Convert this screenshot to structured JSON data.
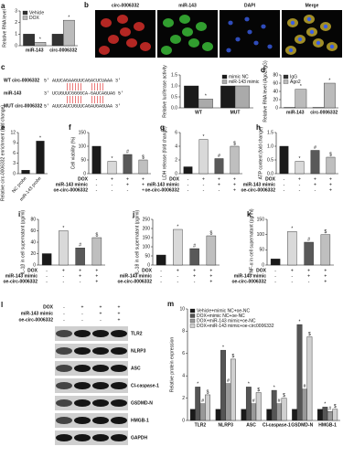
{
  "chart_data": [
    {
      "type": "bar",
      "panel": "a",
      "ylabel": "Relative RNA level",
      "categories": [
        "miR-143",
        "circ-0006332"
      ],
      "series": [
        {
          "name": "Vehicle",
          "color": "#333333",
          "values": [
            1,
            1
          ],
          "markers": [
            null,
            null
          ]
        },
        {
          "name": "DOX",
          "color": "#bbbbbb",
          "values": [
            0.3,
            2.2
          ],
          "markers": [
            "*",
            "*"
          ]
        }
      ],
      "ylim": [
        0,
        3
      ],
      "yticks": [
        0,
        1,
        2,
        3
      ],
      "legend": "top-left"
    },
    {
      "type": "bar",
      "ylabel": "Relative luciferase activity",
      "categories": [
        "WT",
        "MUT"
      ],
      "series": [
        {
          "name": "mimic NC",
          "color": "#1a1a1a",
          "values": [
            1,
            1
          ],
          "markers": [
            null,
            null
          ]
        },
        {
          "name": "miR-143 mimic",
          "color": "#aaaaaa",
          "values": [
            0.4,
            1
          ],
          "markers": [
            "*",
            null
          ]
        }
      ],
      "ylim": [
        0,
        1.5
      ],
      "yticks": [
        {
          "value": 0,
          "label": "0.0"
        },
        {
          "value": 0.5,
          "label": "0.5"
        },
        {
          "value": 1,
          "label": "1.0"
        },
        {
          "value": 1.5,
          "label": "1.5"
        }
      ],
      "legend": "top-right"
    },
    {
      "type": "bar",
      "panel": "d",
      "ylabel": "Relative RNA level (Ago2/IgG)",
      "categories": [
        "miR-143",
        "circ-0006332"
      ],
      "series": [
        {
          "name": "IgG",
          "color": "#333333",
          "values": [
            1,
            1
          ],
          "markers": [
            null,
            null
          ]
        },
        {
          "name": "Ago2",
          "color": "#bbbbbb",
          "values": [
            45,
            60
          ],
          "markers": [
            "*",
            "*"
          ]
        }
      ],
      "ylim": [
        0,
        80
      ],
      "yticks": [
        0,
        20,
        40,
        60,
        80
      ],
      "legend": "top-left"
    },
    {
      "type": "bar",
      "panel": "e",
      "ylabel": "Relative circ-0006332 enrichment (fold change)",
      "categories": [
        "NC probe",
        "miR-143 probe"
      ],
      "values": [
        1,
        9.5
      ],
      "colors": [
        "#1a1a1a",
        "#1a1a1a"
      ],
      "markers": [
        null,
        "*"
      ],
      "ylim": [
        0,
        12
      ],
      "yticks": [
        0,
        3,
        6,
        9,
        12
      ]
    },
    {
      "type": "bar",
      "panel": "f",
      "ylabel": "Cell viability (%)",
      "values": [
        100,
        45,
        70,
        50
      ],
      "colors": [
        "#1a1a1a",
        "#d9d9d9",
        "#595959",
        "#bfbfbf"
      ],
      "markers": [
        null,
        "*",
        "#",
        "$"
      ],
      "ylim": [
        0,
        150
      ],
      "yticks": [
        0,
        50,
        100,
        150
      ],
      "conditions": [
        {
          "label": "DOX",
          "signs": [
            "-",
            "+",
            "+",
            "+"
          ]
        },
        {
          "label": "miR-143 mimic",
          "signs": [
            "-",
            "-",
            "+",
            "+"
          ]
        },
        {
          "label": "oe-circ-0006332",
          "signs": [
            "-",
            "-",
            "-",
            "+"
          ]
        }
      ]
    },
    {
      "type": "bar",
      "panel": "g",
      "ylabel": "LDH release (fold change)",
      "values": [
        1,
        5,
        2.2,
        4
      ],
      "colors": [
        "#1a1a1a",
        "#d9d9d9",
        "#595959",
        "#bfbfbf"
      ],
      "markers": [
        null,
        "*",
        "#",
        "$"
      ],
      "ylim": [
        0,
        6
      ],
      "yticks": [
        0,
        2,
        4,
        6
      ],
      "conditions": [
        {
          "label": "DOX",
          "signs": [
            "-",
            "+",
            "+",
            "+"
          ]
        },
        {
          "label": "miR-143 mimic",
          "signs": [
            "-",
            "-",
            "+",
            "+"
          ]
        },
        {
          "label": "oe-circ-0006332",
          "signs": [
            "-",
            "-",
            "-",
            "+"
          ]
        }
      ]
    },
    {
      "type": "bar",
      "panel": "h",
      "ylabel": "ATP content (fold change)",
      "values": [
        1,
        0.45,
        0.85,
        0.6
      ],
      "colors": [
        "#1a1a1a",
        "#d9d9d9",
        "#595959",
        "#bfbfbf"
      ],
      "markers": [
        null,
        "*",
        "#",
        "$"
      ],
      "ylim": [
        0,
        1.5
      ],
      "yticks": [
        {
          "value": 0,
          "label": "0.0"
        },
        {
          "value": 0.5,
          "label": "0.5"
        },
        {
          "value": 1,
          "label": "1.0"
        },
        {
          "value": 1.5,
          "label": "1.5"
        }
      ],
      "conditions": [
        {
          "label": "DOX",
          "signs": [
            "-",
            "+",
            "+",
            "+"
          ]
        },
        {
          "label": "miR-143 mimic",
          "signs": [
            "-",
            "-",
            "+",
            "+"
          ]
        },
        {
          "label": "oe-circ-0006332",
          "signs": [
            "-",
            "-",
            "-",
            "+"
          ]
        }
      ]
    },
    {
      "type": "bar",
      "panel": "i",
      "ylabel": "IL-1β in cell supernatant (pg/ml)",
      "values": [
        20,
        60,
        30,
        48
      ],
      "colors": [
        "#1a1a1a",
        "#d9d9d9",
        "#595959",
        "#bfbfbf"
      ],
      "markers": [
        null,
        "*",
        "#",
        "$"
      ],
      "ylim": [
        0,
        80
      ],
      "yticks": [
        0,
        20,
        40,
        60,
        80
      ],
      "conditions": [
        {
          "label": "DOX",
          "signs": [
            "-",
            "+",
            "+",
            "+"
          ]
        },
        {
          "label": "miR-143 mimic",
          "signs": [
            "-",
            "-",
            "+",
            "+"
          ]
        },
        {
          "label": "oe-circ-0006332",
          "signs": [
            "-",
            "-",
            "-",
            "+"
          ]
        }
      ]
    },
    {
      "type": "bar",
      "panel": "j",
      "ylabel": "IL-18 in cell supernatant (pg/ml)",
      "values": [
        55,
        195,
        90,
        160
      ],
      "colors": [
        "#1a1a1a",
        "#d9d9d9",
        "#595959",
        "#bfbfbf"
      ],
      "markers": [
        null,
        "*",
        "#",
        "$"
      ],
      "ylim": [
        0,
        250
      ],
      "yticks": [
        0,
        50,
        100,
        150,
        200,
        250
      ],
      "conditions": [
        {
          "label": "DOX",
          "signs": [
            "-",
            "+",
            "+",
            "+"
          ]
        },
        {
          "label": "miR-143 mimic",
          "signs": [
            "-",
            "-",
            "+",
            "+"
          ]
        },
        {
          "label": "oe-circ-0006332",
          "signs": [
            "-",
            "-",
            "-",
            "+"
          ]
        }
      ]
    },
    {
      "type": "bar",
      "panel": "k",
      "ylabel": "TNF-α in cell supernatant (pg/ml)",
      "values": [
        20,
        110,
        75,
        100
      ],
      "colors": [
        "#1a1a1a",
        "#d9d9d9",
        "#595959",
        "#bfbfbf"
      ],
      "markers": [
        null,
        "*",
        "#",
        "$"
      ],
      "ylim": [
        0,
        150
      ],
      "yticks": [
        0,
        50,
        100,
        150
      ],
      "conditions": [
        {
          "label": "DOX",
          "signs": [
            "-",
            "+",
            "+",
            "+"
          ]
        },
        {
          "label": "miR-143 mimic",
          "signs": [
            "-",
            "-",
            "+",
            "+"
          ]
        },
        {
          "label": "oe-circ-0006332",
          "signs": [
            "-",
            "-",
            "-",
            "+"
          ]
        }
      ]
    },
    {
      "type": "bar",
      "panel": "m",
      "ylabel": "Relative protein expression",
      "categories": [
        "TLR2",
        "NLRP3",
        "ASC",
        "Cl-caspase-1",
        "GSDMD-N",
        "HMGB-1"
      ],
      "series": [
        {
          "name": "Vehicle+mimic NC+oe-NC",
          "color": "#1a1a1a",
          "values": [
            1,
            1,
            1,
            1,
            1,
            1
          ],
          "markers": [
            null,
            null,
            null,
            null,
            null,
            null
          ]
        },
        {
          "name": "DOX+mimic NC+oe-NC",
          "color": "#555555",
          "values": [
            3,
            6.3,
            3,
            2.7,
            8.6,
            1.2
          ],
          "markers": [
            "*",
            "*",
            "*",
            "*",
            "*",
            "*"
          ]
        },
        {
          "name": "DOX+miR-143 mimic+oe-NC",
          "color": "#999999",
          "values": [
            1.5,
            3.3,
            1.5,
            1.5,
            2.8,
            0.8
          ],
          "markers": [
            "#",
            "#",
            "#",
            "#",
            "#",
            "#"
          ]
        },
        {
          "name": "DOX+miR-143 mimic+oe-circ0006332",
          "color": "#d0d0d0",
          "values": [
            2.3,
            5.5,
            2.5,
            2,
            7.5,
            1
          ],
          "markers": [
            "$",
            "$",
            "$",
            "$",
            "$",
            "$"
          ]
        }
      ],
      "ylim": [
        0,
        10
      ],
      "yticks": [
        0,
        2,
        4,
        6,
        8,
        10
      ],
      "legend": "top-left"
    }
  ],
  "images": {
    "panel": "b",
    "labels": [
      "circ-0006332",
      "miR-143",
      "DAPI",
      "Merge"
    ]
  },
  "sequence": {
    "panel": "c",
    "rows": [
      {
        "label": "WT circ-0006332",
        "seq": "5' AUUCAGAAGUUCAGACUCUAAA 3'"
      },
      {
        "label": "miR-143",
        "seq": "3' UCUGUUCGGGGCA-GAUCAGUAG 5'"
      },
      {
        "label": "MUT circ-0006332",
        "seq": "5' AUUCAUCUGUUCAGAUGAGUAA 3'"
      }
    ]
  },
  "blot": {
    "panel": "l",
    "conditions": [
      {
        "label": "DOX",
        "signs": [
          "-",
          "+",
          "+",
          "+"
        ]
      },
      {
        "label": "miR-143 mimic",
        "signs": [
          "-",
          "-",
          "+",
          "+"
        ]
      },
      {
        "label": "oe-circ-0006332",
        "signs": [
          "-",
          "-",
          "-",
          "+"
        ]
      }
    ],
    "proteins": [
      "TLR2",
      "NLRP3",
      "ASC",
      "Cl-caspase-1",
      "GSDMD-N",
      "HMGB-1",
      "GAPDH"
    ]
  }
}
